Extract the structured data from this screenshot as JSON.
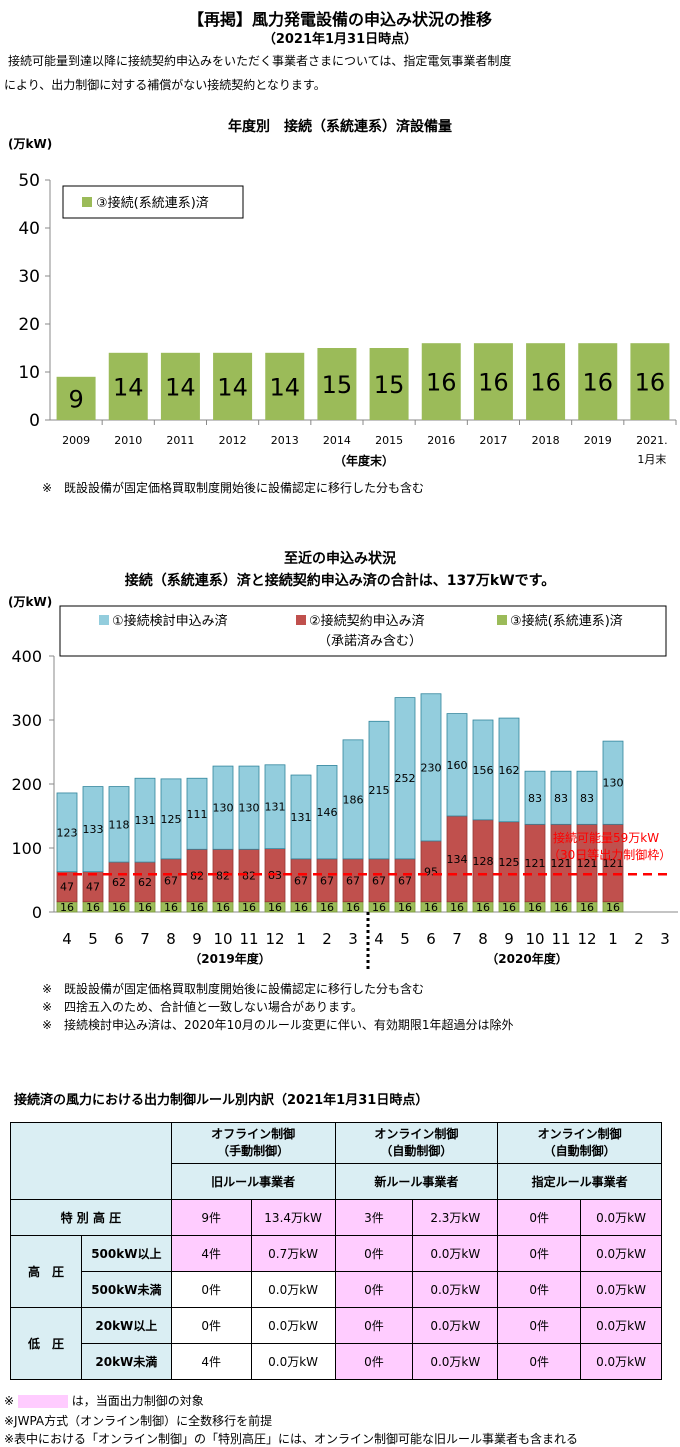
{
  "header": {
    "title": "【再掲】風力発電設備の申込み状況の推移",
    "date": "（2021年1月31日時点）",
    "intro1": "接続可能量到達以降に接続契約申込みをいただく事業者さまについては、指定電気事業者制度",
    "intro2": "により、出力制御に対する補償がない接続契約となります。"
  },
  "chart1": {
    "title": "年度別　接続（系統連系）済設備量",
    "unit": "(万kW)",
    "legend": "③接続(系統連系)済",
    "xlabel": "（年度末）",
    "note": "※　既設設備が固定価格買取制度開始後に設備認定に移行した分も含む"
  },
  "chart2": {
    "title1": "至近の申込み状況",
    "title2": "接続（系統連系）済と接続契約申込み済の合計は、137万kWです。",
    "unit": "(万kW)",
    "legend": [
      "①接続検討申込み済",
      "②接続契約申込み済",
      "（承諾済み含む）",
      "③接続(系統連系)済"
    ],
    "fy1": "（2019年度）",
    "fy2": "（2020年度）",
    "threshold_label1": "接続可能量59万kW",
    "threshold_label2": "（30日等出力制御枠）",
    "notes": [
      "※　既設設備が固定価格買取制度開始後に設備認定に移行した分も含む",
      "※　四捨五入のため、合計値と一致しない場合があります。",
      "※　接続検討申込み済は、2020年10月のルール変更に伴い、有効期限1年超過分は除外"
    ]
  },
  "chart_data": [
    {
      "type": "bar",
      "title": "年度別　接続（系統連系）済設備量",
      "ylabel": "(万kW)",
      "xlabel": "（年度末）",
      "categories": [
        "2009",
        "2010",
        "2011",
        "2012",
        "2013",
        "2014",
        "2015",
        "2016",
        "2017",
        "2018",
        "2019",
        "2021.\n1月末"
      ],
      "category_lines": [
        [
          "2009"
        ],
        [
          "2010"
        ],
        [
          "2011"
        ],
        [
          "2012"
        ],
        [
          "2013"
        ],
        [
          "2014"
        ],
        [
          "2015"
        ],
        [
          "2016"
        ],
        [
          "2017"
        ],
        [
          "2018"
        ],
        [
          "2019"
        ],
        [
          "2021.",
          "1月末"
        ]
      ],
      "series": [
        {
          "name": "③接続(系統連系)済",
          "values": [
            9,
            14,
            14,
            14,
            14,
            15,
            15,
            16,
            16,
            16,
            16,
            16
          ],
          "color": "#9bbb59"
        }
      ],
      "ylim": [
        0,
        50
      ],
      "yticks": [
        0,
        10,
        20,
        30,
        40,
        50
      ],
      "legend_position": "top-left",
      "grid": false
    },
    {
      "type": "bar",
      "stacked": true,
      "title": "接続（系統連系）済と接続契約申込み済の合計は、137万kWです。",
      "ylabel": "(万kW)",
      "categories": [
        "4",
        "5",
        "6",
        "7",
        "8",
        "9",
        "10",
        "11",
        "12",
        "1",
        "2",
        "3",
        "4",
        "5",
        "6",
        "7",
        "8",
        "9",
        "10",
        "11",
        "12",
        "1",
        "2",
        "3"
      ],
      "series": [
        {
          "name": "③接続(系統連系)済",
          "color": "#9bbb59",
          "values": [
            16,
            16,
            16,
            16,
            16,
            16,
            16,
            16,
            16,
            16,
            16,
            16,
            16,
            16,
            16,
            16,
            16,
            16,
            16,
            16,
            16,
            16,
            null,
            null
          ]
        },
        {
          "name": "②接続契約申込み済（承諾済み含む）",
          "color": "#c0504d",
          "values": [
            47,
            47,
            62,
            62,
            67,
            82,
            82,
            82,
            83,
            67,
            67,
            67,
            67,
            67,
            95,
            134,
            128,
            125,
            121,
            121,
            121,
            121,
            null,
            null
          ]
        },
        {
          "name": "①接続検討申込み済",
          "color": "#93cddd",
          "values": [
            123,
            133,
            118,
            131,
            125,
            111,
            130,
            130,
            131,
            131,
            146,
            186,
            215,
            252,
            230,
            160,
            156,
            162,
            83,
            83,
            83,
            130,
            null,
            null
          ]
        }
      ],
      "threshold": {
        "value": 59,
        "label": "接続可能量59万kW（30日等出力制御枠）",
        "color": "#ff0000"
      },
      "ylim": [
        0,
        400
      ],
      "yticks": [
        0,
        100,
        200,
        300,
        400
      ],
      "legend_position": "top",
      "grid": false
    }
  ],
  "table": {
    "title": "接続済の風力における出力制御ルール別内訳（2021年1月31日時点）",
    "groups": [
      {
        "l1": "オフライン制御",
        "l2": "（手動制御）",
        "sub": "旧ルール事業者"
      },
      {
        "l1": "オンライン制御",
        "l2": "（自動制御）",
        "sub": "新ルール事業者"
      },
      {
        "l1": "オンライン制御",
        "l2": "（自動制御）",
        "sub": "指定ルール事業者"
      }
    ],
    "r1_label": "特 別 高 圧",
    "r1": [
      "9件",
      "13.4万kW",
      "3件",
      "2.3万kW",
      "0件",
      "0.0万kW"
    ],
    "high_label": "高　圧",
    "r2_label": "500kW以上",
    "r2": [
      "4件",
      "0.7万kW",
      "0件",
      "0.0万kW",
      "0件",
      "0.0万kW"
    ],
    "r3_label": "500kW未満",
    "r3": [
      "0件",
      "0.0万kW",
      "0件",
      "0.0万kW",
      "0件",
      "0.0万kW"
    ],
    "low_label": "低　圧",
    "r4_label": "20kW以上",
    "r4": [
      "0件",
      "0.0万kW",
      "0件",
      "0.0万kW",
      "0件",
      "0.0万kW"
    ],
    "r5_label": "20kW未満",
    "r5": [
      "4件",
      "0.0万kW",
      "0件",
      "0.0万kW",
      "0件",
      "0.0万kW"
    ],
    "notes": [
      "は，当面出力制御の対象",
      "※JWPA方式（オンライン制御）に全数移行を前提",
      "※表中における「オンライン制御」の「特別高圧」には、オンライン制御可能な旧ルール事業者も含まれる"
    ],
    "note_mark": "※",
    "highlight_color": "#ffccff"
  }
}
